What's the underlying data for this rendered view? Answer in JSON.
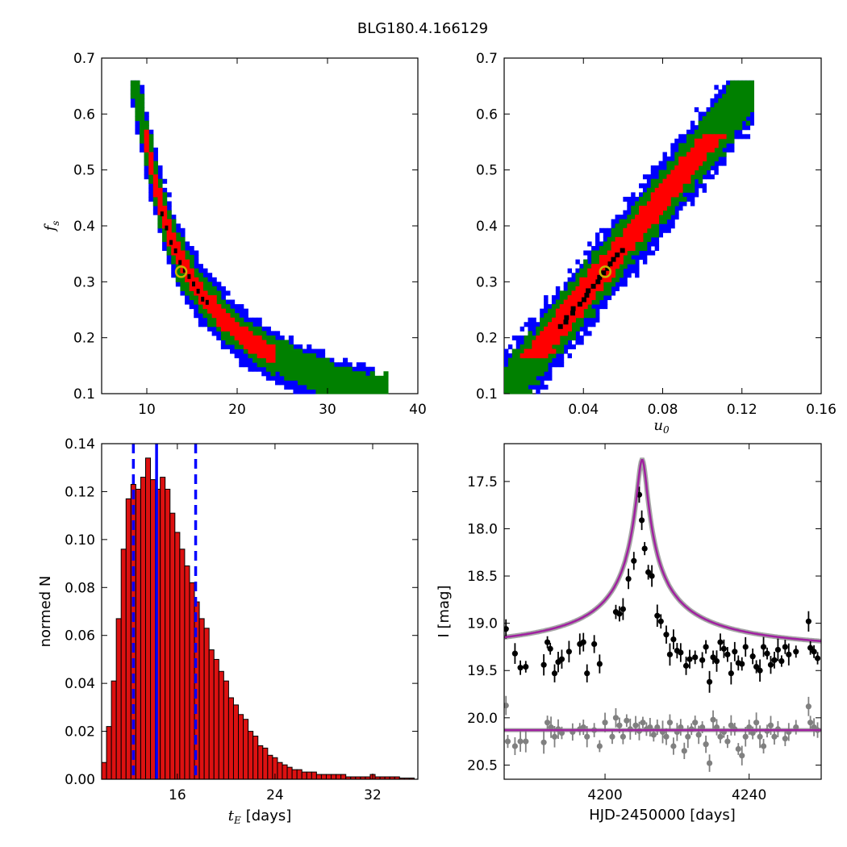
{
  "figure_title": "BLG180.4.166129",
  "colors": {
    "blue": "#0000ff",
    "green": "#008000",
    "red": "#ff0000",
    "black": "#000000",
    "best_fit_marker": "#c8b400",
    "model": "#a020a0",
    "model_band": "#808080",
    "data_primary": "#000000",
    "data_secondary": "#808080",
    "hist_bar": "#dd1111"
  },
  "chart_data": [
    {
      "id": "tE_fs",
      "type": "heatmap",
      "description_levels": [
        "blue",
        "green",
        "red",
        "black"
      ],
      "xlim": [
        5,
        40
      ],
      "ylim": [
        0.1,
        0.7
      ],
      "xticks": [
        "10",
        "20",
        "30",
        "40"
      ],
      "yticks": [
        "0.1",
        "0.2",
        "0.3",
        "0.4",
        "0.5",
        "0.6",
        "0.7"
      ],
      "xlabel": "",
      "ylabel": "f_s",
      "ylabel_base": "f",
      "ylabel_sub": "s",
      "best_fit": {
        "x": 13.8,
        "y": 0.318
      },
      "ridge": [
        [
          8.3,
          0.66
        ],
        [
          9.5,
          0.56
        ],
        [
          11,
          0.45
        ],
        [
          12.5,
          0.37
        ],
        [
          14,
          0.32
        ],
        [
          16,
          0.27
        ],
        [
          18,
          0.235
        ],
        [
          20,
          0.205
        ],
        [
          22,
          0.18
        ],
        [
          25,
          0.155
        ],
        [
          28,
          0.135
        ],
        [
          31,
          0.115
        ],
        [
          36,
          0.1
        ]
      ]
    },
    {
      "id": "u0_fs",
      "type": "heatmap",
      "xlim": [
        0.0,
        0.16
      ],
      "ylim": [
        0.1,
        0.7
      ],
      "xticks": [
        "0.04",
        "0.08",
        "0.12",
        "0.16"
      ],
      "yticks": [
        "0.1",
        "0.2",
        "0.3",
        "0.4",
        "0.5",
        "0.6",
        "0.7"
      ],
      "xlabel": "u_0",
      "xlabel_base": "u",
      "xlabel_sub": "0",
      "ylabel": "",
      "best_fit": {
        "x": 0.051,
        "y": 0.318
      },
      "ridge_start": [
        0.0,
        0.1
      ],
      "ridge_end": [
        0.125,
        0.65
      ]
    },
    {
      "id": "tE_hist",
      "type": "bar",
      "xlim": [
        9.8,
        35.7
      ],
      "ylim": [
        0.0,
        0.14
      ],
      "xticks": [
        "16",
        "24",
        "32"
      ],
      "yticks": [
        "0.00",
        "0.02",
        "0.04",
        "0.06",
        "0.08",
        "0.10",
        "0.12",
        "0.14"
      ],
      "xlabel": "t_E [days]",
      "xlabel_base": "t",
      "xlabel_sub": "E",
      "xlabel_unit": "[days]",
      "ylabel": "normed N",
      "bin_start": 9.8,
      "bin_width": 0.4,
      "values": [
        0.007,
        0.022,
        0.041,
        0.067,
        0.096,
        0.117,
        0.123,
        0.121,
        0.126,
        0.134,
        0.125,
        0.121,
        0.126,
        0.121,
        0.111,
        0.103,
        0.096,
        0.089,
        0.082,
        0.074,
        0.067,
        0.063,
        0.054,
        0.05,
        0.045,
        0.041,
        0.034,
        0.031,
        0.027,
        0.025,
        0.02,
        0.018,
        0.014,
        0.013,
        0.01,
        0.009,
        0.007,
        0.006,
        0.005,
        0.004,
        0.004,
        0.003,
        0.003,
        0.003,
        0.002,
        0.002,
        0.002,
        0.002,
        0.002,
        0.002,
        0.001,
        0.001,
        0.001,
        0.001,
        0.001,
        0.002,
        0.001,
        0.001,
        0.001,
        0.001,
        0.001,
        0.0005,
        0.0005,
        0.0005
      ],
      "median": 14.3,
      "interval": [
        12.4,
        17.5
      ]
    },
    {
      "id": "lightcurve",
      "type": "scatter",
      "xlim": [
        4172,
        4260
      ],
      "ylim": [
        20.65,
        17.1
      ],
      "xticks": [
        "4200",
        "4240"
      ],
      "yticks": [
        "17.5",
        "18.0",
        "18.5",
        "19.0",
        "19.5",
        "20.0",
        "20.5"
      ],
      "xlabel": "HJD-2450000 [days]",
      "ylabel": "I [mag]",
      "model_primary": {
        "baseline": 19.34,
        "peak_time": 4210.3,
        "peak_mag": 17.27
      },
      "model_secondary": {
        "baseline": 20.13
      },
      "series": [
        {
          "name": "primary",
          "color": "#000000",
          "points": [
            [
              4172.5,
              19.06
            ],
            [
              4175,
              19.32
            ],
            [
              4176.5,
              19.47
            ],
            [
              4178,
              19.46
            ],
            [
              4183,
              19.44
            ],
            [
              4184,
              19.2
            ],
            [
              4184.8,
              19.27
            ],
            [
              4186,
              19.53
            ],
            [
              4187,
              19.41
            ],
            [
              4188,
              19.38
            ],
            [
              4190,
              19.3
            ],
            [
              4193,
              19.22
            ],
            [
              4194,
              19.2
            ],
            [
              4195,
              19.53
            ],
            [
              4197,
              19.22
            ],
            [
              4198.5,
              19.43
            ],
            [
              4203,
              18.88
            ],
            [
              4204,
              18.9
            ],
            [
              4205,
              18.85
            ],
            [
              4206.5,
              18.53
            ],
            [
              4208,
              18.34
            ],
            [
              4209.5,
              17.64
            ],
            [
              4210.2,
              17.91
            ],
            [
              4211,
              18.21
            ],
            [
              4212,
              18.46
            ],
            [
              4213,
              18.5
            ],
            [
              4214.5,
              18.92
            ],
            [
              4215.5,
              18.98
            ],
            [
              4217,
              19.12
            ],
            [
              4218,
              19.33
            ],
            [
              4219,
              19.17
            ],
            [
              4220,
              19.29
            ],
            [
              4221,
              19.31
            ],
            [
              4222.5,
              19.45
            ],
            [
              4223.5,
              19.38
            ],
            [
              4225,
              19.36
            ],
            [
              4227,
              19.39
            ],
            [
              4228,
              19.25
            ],
            [
              4229,
              19.62
            ],
            [
              4230,
              19.36
            ],
            [
              4231,
              19.4
            ],
            [
              4232,
              19.2
            ],
            [
              4233,
              19.27
            ],
            [
              4234,
              19.33
            ],
            [
              4235,
              19.53
            ],
            [
              4236,
              19.3
            ],
            [
              4237,
              19.42
            ],
            [
              4238,
              19.43
            ],
            [
              4239,
              19.25
            ],
            [
              4241,
              19.35
            ],
            [
              4242,
              19.46
            ],
            [
              4243,
              19.5
            ],
            [
              4244,
              19.25
            ],
            [
              4245,
              19.32
            ],
            [
              4246,
              19.44
            ],
            [
              4247,
              19.39
            ],
            [
              4248,
              19.28
            ],
            [
              4249,
              19.4
            ],
            [
              4250,
              19.25
            ],
            [
              4251,
              19.33
            ],
            [
              4253,
              19.3
            ],
            [
              4256.5,
              18.98
            ],
            [
              4257,
              19.26
            ],
            [
              4258,
              19.3
            ],
            [
              4259,
              19.37
            ]
          ]
        },
        {
          "name": "secondary",
          "color": "#808080",
          "points": [
            [
              4172.5,
              19.87
            ],
            [
              4173,
              20.25
            ],
            [
              4175,
              20.3
            ],
            [
              4176.5,
              20.25
            ],
            [
              4178,
              20.25
            ],
            [
              4183,
              20.26
            ],
            [
              4184,
              20.05
            ],
            [
              4185,
              20.1
            ],
            [
              4186,
              20.2
            ],
            [
              4187,
              20.12
            ],
            [
              4188,
              20.16
            ],
            [
              4191,
              20.15
            ],
            [
              4193,
              20.12
            ],
            [
              4194,
              20.1
            ],
            [
              4195,
              20.2
            ],
            [
              4197,
              20.13
            ],
            [
              4198.5,
              20.3
            ],
            [
              4200,
              20.05
            ],
            [
              4202,
              20.2
            ],
            [
              4203,
              20.0
            ],
            [
              4204,
              20.08
            ],
            [
              4205,
              20.2
            ],
            [
              4206,
              20.03
            ],
            [
              4207,
              20.12
            ],
            [
              4208.5,
              20.08
            ],
            [
              4209.5,
              20.14
            ],
            [
              4210.5,
              20.05
            ],
            [
              4211.5,
              20.12
            ],
            [
              4212.5,
              20.1
            ],
            [
              4213.5,
              20.18
            ],
            [
              4214.5,
              20.1
            ],
            [
              4216,
              20.15
            ],
            [
              4217,
              20.2
            ],
            [
              4218,
              20.05
            ],
            [
              4219,
              20.3
            ],
            [
              4220,
              20.15
            ],
            [
              4221,
              20.1
            ],
            [
              4222,
              20.35
            ],
            [
              4223,
              20.2
            ],
            [
              4224,
              20.12
            ],
            [
              4225,
              20.05
            ],
            [
              4226,
              20.18
            ],
            [
              4227,
              20.1
            ],
            [
              4228,
              20.28
            ],
            [
              4229,
              20.48
            ],
            [
              4230,
              20.02
            ],
            [
              4231,
              20.1
            ],
            [
              4232,
              20.2
            ],
            [
              4233,
              20.15
            ],
            [
              4234,
              20.25
            ],
            [
              4235,
              20.08
            ],
            [
              4236,
              20.12
            ],
            [
              4237,
              20.33
            ],
            [
              4238,
              20.4
            ],
            [
              4239,
              20.2
            ],
            [
              4240,
              20.1
            ],
            [
              4241,
              20.16
            ],
            [
              4242,
              20.05
            ],
            [
              4243,
              20.2
            ],
            [
              4244,
              20.3
            ],
            [
              4245,
              20.14
            ],
            [
              4246,
              20.08
            ],
            [
              4247,
              20.2
            ],
            [
              4248,
              20.12
            ],
            [
              4250,
              20.22
            ],
            [
              4251,
              20.15
            ],
            [
              4253,
              20.1
            ],
            [
              4256.5,
              19.88
            ],
            [
              4257,
              20.05
            ],
            [
              4258,
              20.1
            ],
            [
              4259,
              20.13
            ]
          ]
        }
      ]
    }
  ]
}
